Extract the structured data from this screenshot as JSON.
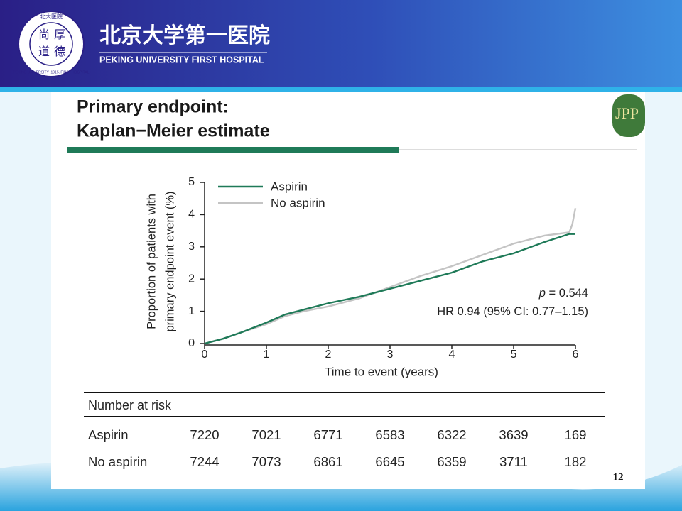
{
  "header": {
    "seal_top": "北大医院",
    "seal_center": [
      "尚",
      "厚",
      "道",
      "德"
    ],
    "seal_ring": "PEKING UNIVERSITY .1915. FIRST HOSPITAL",
    "name_chinese": "北京大学第一医院",
    "name_english": "PEKING UNIVERSITY FIRST HOSPITAL",
    "badge": "JPP"
  },
  "slide_title": [
    "Primary endpoint:",
    "Kaplan−Meier estimate"
  ],
  "chart_data": {
    "type": "line",
    "ylabel": [
      "Proportion of patients with",
      "primary endpoint event (%)"
    ],
    "xlabel": "Time to event (years)",
    "xlim": [
      0,
      6
    ],
    "xticks": [
      0,
      1,
      2,
      3,
      4,
      5,
      6
    ],
    "ylim": [
      0,
      5
    ],
    "yticks": [
      0,
      1,
      2,
      3,
      4,
      5
    ],
    "legend": "top-left",
    "series": [
      {
        "name": "Aspirin",
        "color": "#1f7a58",
        "x": [
          0,
          0.3,
          0.6,
          1.0,
          1.3,
          1.6,
          2.0,
          2.5,
          3.0,
          3.5,
          4.0,
          4.5,
          5.0,
          5.5,
          5.9,
          6.0
        ],
        "values": [
          0,
          0.15,
          0.35,
          0.65,
          0.9,
          1.05,
          1.25,
          1.45,
          1.7,
          1.95,
          2.2,
          2.55,
          2.8,
          3.15,
          3.4,
          3.4
        ]
      },
      {
        "name": "No aspirin",
        "color": "#c4c4c4",
        "x": [
          0,
          0.3,
          0.6,
          1.0,
          1.3,
          1.6,
          2.0,
          2.5,
          3.0,
          3.5,
          4.0,
          4.5,
          5.0,
          5.5,
          5.9,
          5.95,
          6.0
        ],
        "values": [
          0,
          0.15,
          0.35,
          0.6,
          0.85,
          1.0,
          1.15,
          1.4,
          1.75,
          2.1,
          2.4,
          2.75,
          3.1,
          3.35,
          3.45,
          3.7,
          4.2
        ]
      }
    ],
    "annotations": [
      {
        "italic": "p",
        "text": " = 0.544"
      },
      {
        "text": "HR 0.94 (95% CI: 0.77–1.15)"
      }
    ]
  },
  "risk_table": {
    "title": "Number at risk",
    "rows": [
      [
        "Aspirin",
        "7220",
        "7021",
        "6771",
        "6583",
        "6322",
        "3639",
        "169"
      ],
      [
        "No aspirin",
        "7244",
        "7073",
        "6861",
        "6645",
        "6359",
        "3711",
        "182"
      ]
    ]
  },
  "page_number": "12"
}
